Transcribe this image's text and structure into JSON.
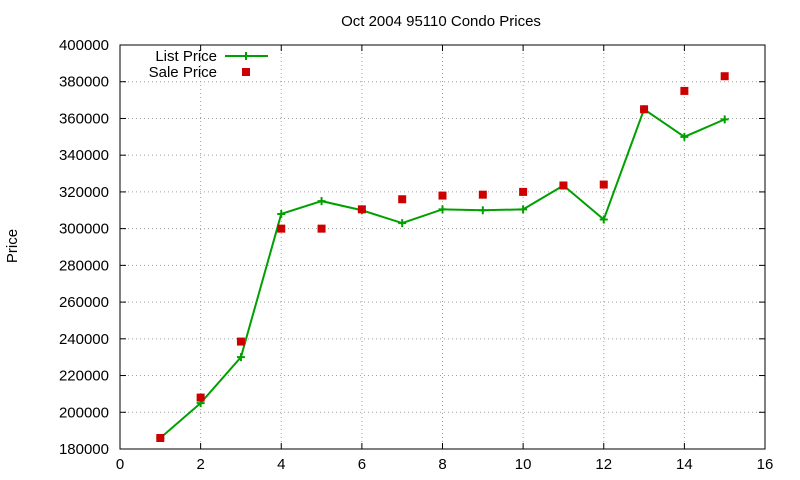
{
  "chart_data": {
    "type": "line",
    "title": "Oct 2004 95110 Condo Prices",
    "xlabel": "",
    "ylabel": "Price",
    "xlim": [
      0,
      16
    ],
    "ylim": [
      180000,
      400000
    ],
    "x_ticks": [
      0,
      2,
      4,
      6,
      8,
      10,
      12,
      14,
      16
    ],
    "y_ticks": [
      180000,
      200000,
      220000,
      240000,
      260000,
      280000,
      300000,
      320000,
      340000,
      360000,
      380000,
      400000
    ],
    "grid": true,
    "legend_position": "top-left",
    "series": [
      {
        "name": "List Price",
        "style": "line+cross",
        "color": "#00a000",
        "x": [
          1,
          2,
          3,
          4,
          5,
          6,
          7,
          8,
          9,
          10,
          11,
          12,
          13,
          14,
          15
        ],
        "y": [
          186000,
          205000,
          230000,
          308000,
          315000,
          310000,
          303000,
          310500,
          310000,
          310500,
          323500,
          305000,
          365000,
          350000,
          359500
        ]
      },
      {
        "name": "Sale Price",
        "style": "square",
        "color": "#cc0000",
        "x": [
          1,
          2,
          3,
          4,
          5,
          6,
          7,
          8,
          9,
          10,
          11,
          12,
          13,
          14,
          15
        ],
        "y": [
          186000,
          208000,
          238500,
          300000,
          300000,
          310500,
          316000,
          318000,
          318500,
          320000,
          323500,
          324000,
          365000,
          375000,
          383000
        ]
      }
    ]
  }
}
